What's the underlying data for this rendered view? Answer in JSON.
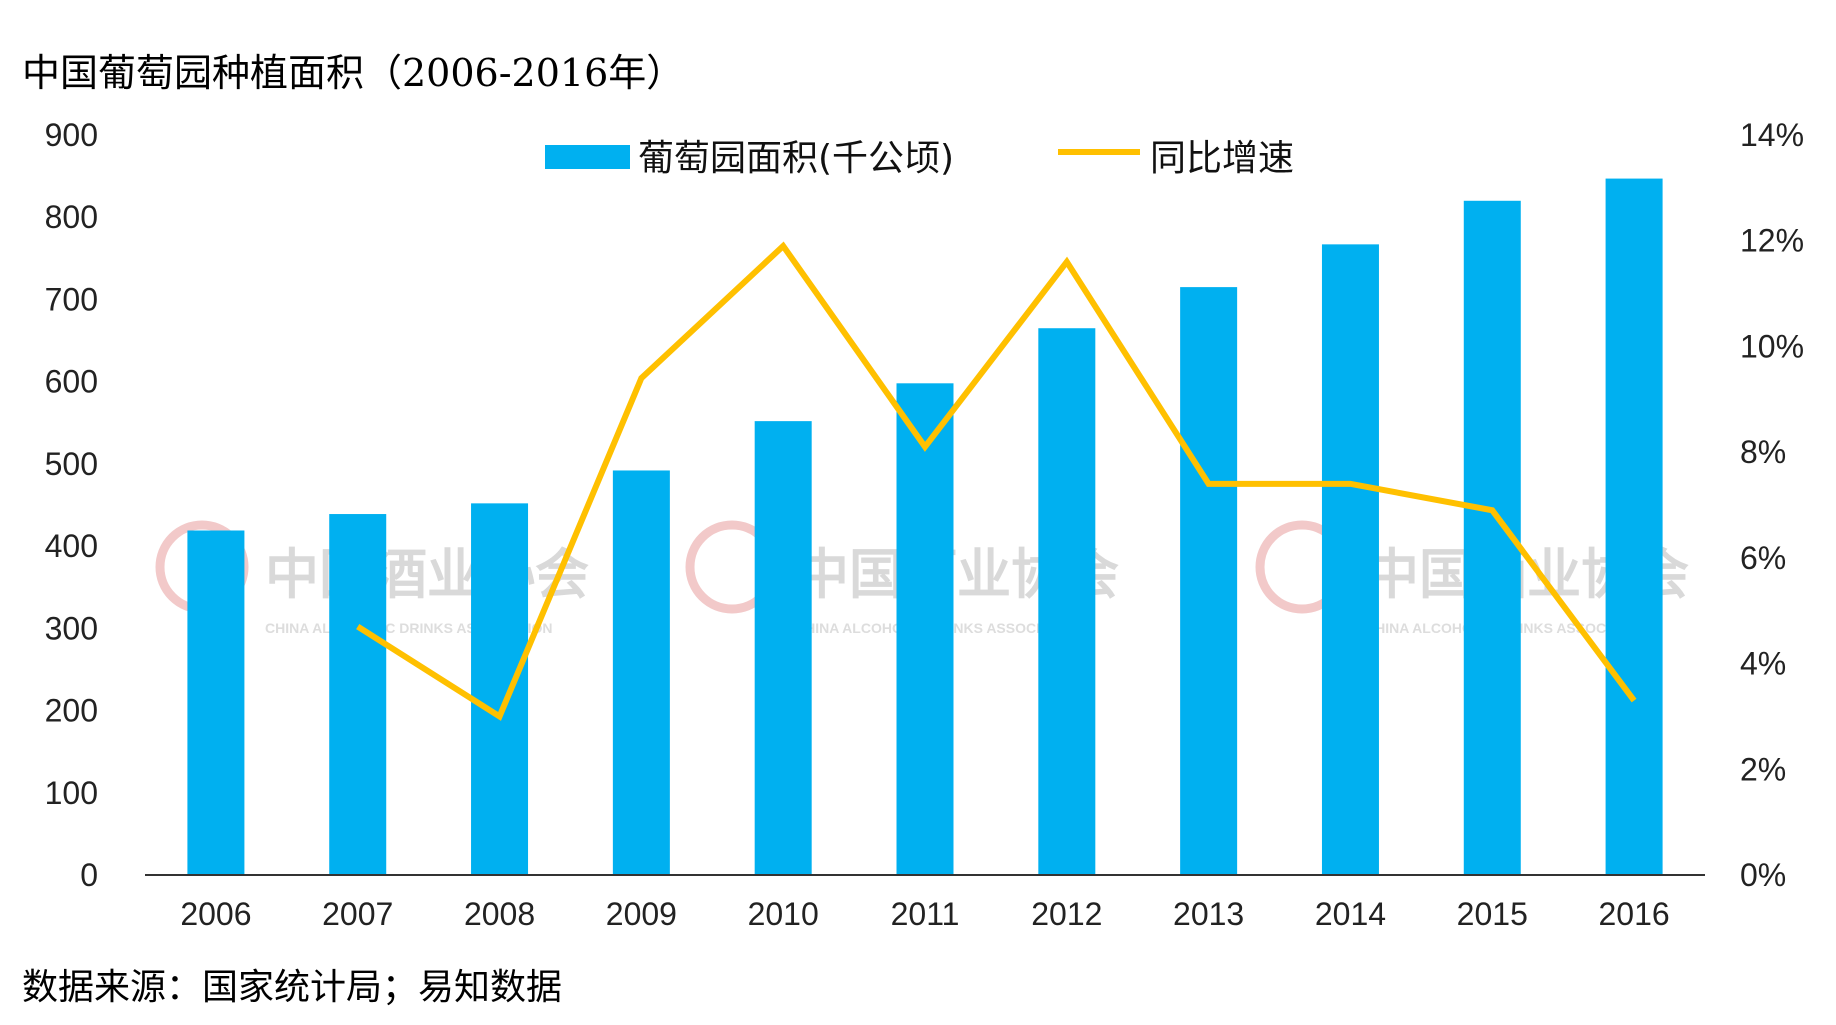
{
  "title": "中国葡萄园种植面积（2006-2016年）",
  "source": "数据来源：国家统计局；易知数据",
  "watermark": {
    "text": "中国酒业协会",
    "subtext": "CHINA ALCOHOLIC DRINKS ASSOCIATION",
    "logo_color": "#f2c9c9"
  },
  "colors": {
    "bar": "#00b0f0",
    "line": "#ffc000",
    "axis": "#333333"
  },
  "chart_data": {
    "type": "bar",
    "categories": [
      "2006",
      "2007",
      "2008",
      "2009",
      "2010",
      "2011",
      "2012",
      "2013",
      "2014",
      "2015",
      "2016"
    ],
    "series": [
      {
        "name": "葡萄园面积(千公顷)",
        "type": "bar",
        "axis": "left",
        "values": [
          419,
          439,
          452,
          492,
          552,
          598,
          665,
          715,
          767,
          820,
          847
        ]
      },
      {
        "name": "同比增速",
        "type": "line",
        "axis": "right",
        "values": [
          null,
          0.047,
          0.03,
          0.094,
          0.119,
          0.081,
          0.116,
          0.074,
          0.074,
          0.069,
          0.033
        ]
      }
    ],
    "y_left": {
      "min": 0,
      "max": 900,
      "ticks": [
        "0",
        "100",
        "200",
        "300",
        "400",
        "500",
        "600",
        "700",
        "800",
        "900"
      ]
    },
    "y_right": {
      "min": 0,
      "max": 0.14,
      "ticks": [
        "0%",
        "2%",
        "4%",
        "6%",
        "8%",
        "10%",
        "12%",
        "14%"
      ]
    },
    "legend_position": "top-center",
    "grid": false
  }
}
